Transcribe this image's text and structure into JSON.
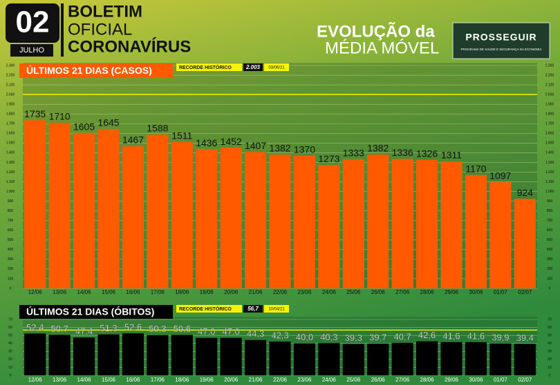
{
  "header": {
    "day": "02",
    "month": "JULHO",
    "lines": [
      "BOLETIM",
      "OFICIAL",
      "CORONAVÍRUS"
    ],
    "section": [
      "EVOLUÇÃO da",
      "MÉDIA MÓVEL"
    ],
    "logo": "PROSSEGUIR",
    "logo_subtitle": "PROGRAMA DE SAÚDE E SEGURANÇA NA ECONOMIA"
  },
  "chart_data": [
    {
      "type": "bar",
      "title": "ÚLTIMOS 21 DIAS (CASOS)",
      "color": "#ff5a00",
      "record": {
        "label": "RECORDE HISTÓRICO",
        "value": 2003,
        "value_label": "2.003",
        "date": "03/06/21"
      },
      "categories": [
        "12/06",
        "13/06",
        "14/06",
        "15/06",
        "16/06",
        "17/06",
        "18/06",
        "19/06",
        "20/06",
        "21/06",
        "22/06",
        "23/06",
        "24/06",
        "25/06",
        "26/06",
        "27/06",
        "28/06",
        "29/06",
        "30/06",
        "01/07",
        "02/07"
      ],
      "values": [
        1735,
        1710,
        1605,
        1645,
        1467,
        1588,
        1511,
        1436,
        1452,
        1407,
        1382,
        1370,
        1273,
        1333,
        1382,
        1336,
        1326,
        1311,
        1170,
        1097,
        924
      ],
      "ylim": [
        0,
        2300
      ],
      "yticks": [
        0,
        100,
        200,
        300,
        400,
        500,
        600,
        700,
        800,
        900,
        {
          "value": 1000,
          "label": "1.000"
        },
        {
          "value": 1100,
          "label": "1.100"
        },
        {
          "value": 1200,
          "label": "1.200"
        },
        {
          "value": 1300,
          "label": "1.300"
        },
        {
          "value": 1400,
          "label": "1.400"
        },
        {
          "value": 1500,
          "label": "1.500"
        },
        {
          "value": 1600,
          "label": "1.600"
        },
        {
          "value": 1700,
          "label": "1.700"
        },
        {
          "value": 1800,
          "label": "1.800"
        },
        {
          "value": 1900,
          "label": "1.900"
        },
        {
          "value": 2000,
          "label": "2.000"
        },
        {
          "value": 2100,
          "label": "2.100"
        },
        {
          "value": 2200,
          "label": "2.200"
        },
        {
          "value": 2300,
          "label": "2.300"
        }
      ],
      "grid": true
    },
    {
      "type": "bar",
      "title": "ÚLTIMOS 21 DIAS (ÓBITOS)",
      "color": "#000000",
      "record": {
        "label": "RECORDE HISTÓRICO",
        "value": 56.7,
        "value_label": "56,7",
        "date": "10/04/21"
      },
      "categories": [
        "12/06",
        "13/06",
        "14/06",
        "15/06",
        "16/06",
        "17/06",
        "18/06",
        "19/06",
        "20/06",
        "21/06",
        "22/06",
        "23/06",
        "24/06",
        "25/06",
        "26/06",
        "27/06",
        "28/06",
        "29/06",
        "30/06",
        "01/07",
        "02/07"
      ],
      "values": [
        52.4,
        50.7,
        47.4,
        51.3,
        52.6,
        50.3,
        50.6,
        47.0,
        47.0,
        44.3,
        42.3,
        40.0,
        40.3,
        39.3,
        39.7,
        40.7,
        42.6,
        41.6,
        41.6,
        39.9,
        39.4
      ],
      "value_labels": [
        "52,4",
        "50,7",
        "47,4",
        "51,3",
        "52,6",
        "50,3",
        "50,6",
        "47,0",
        "47,0",
        "44,3",
        "42,3",
        "40,0",
        "40,3",
        "39,3",
        "39,7",
        "40,7",
        "42,6",
        "41,6",
        "41,6",
        "39,9",
        "39,4"
      ],
      "ylim": [
        0,
        70
      ],
      "yticks": [
        0,
        10,
        20,
        30,
        40,
        50,
        60,
        70
      ],
      "grid": true
    }
  ]
}
